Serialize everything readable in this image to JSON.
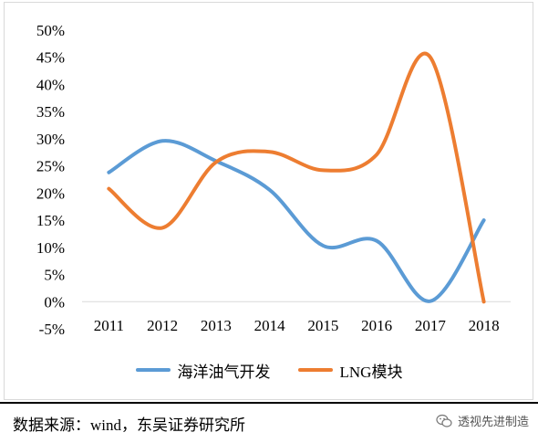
{
  "chart_data": {
    "type": "line",
    "categories": [
      "2011",
      "2012",
      "2013",
      "2014",
      "2015",
      "2016",
      "2017",
      "2018"
    ],
    "series": [
      {
        "name": "海洋油气开发",
        "color": "#5b9bd5",
        "values": [
          23.8,
          29.6,
          25.9,
          20.6,
          10.3,
          11.2,
          0.1,
          15.0
        ]
      },
      {
        "name": "LNG模块",
        "color": "#ed7d31",
        "values": [
          20.8,
          13.6,
          25.7,
          27.6,
          24.2,
          27.1,
          45.0,
          0.0
        ]
      }
    ],
    "yticks": [
      "50%",
      "45%",
      "40%",
      "35%",
      "30%",
      "25%",
      "20%",
      "15%",
      "10%",
      "5%",
      "0%",
      "-5%"
    ],
    "ylim": [
      -5,
      50
    ],
    "smooth": true,
    "grid": false,
    "legend": "bottom"
  },
  "footer": {
    "source": "数据来源：wind，东吴证券研究所",
    "watermark": "透视先进制造"
  }
}
